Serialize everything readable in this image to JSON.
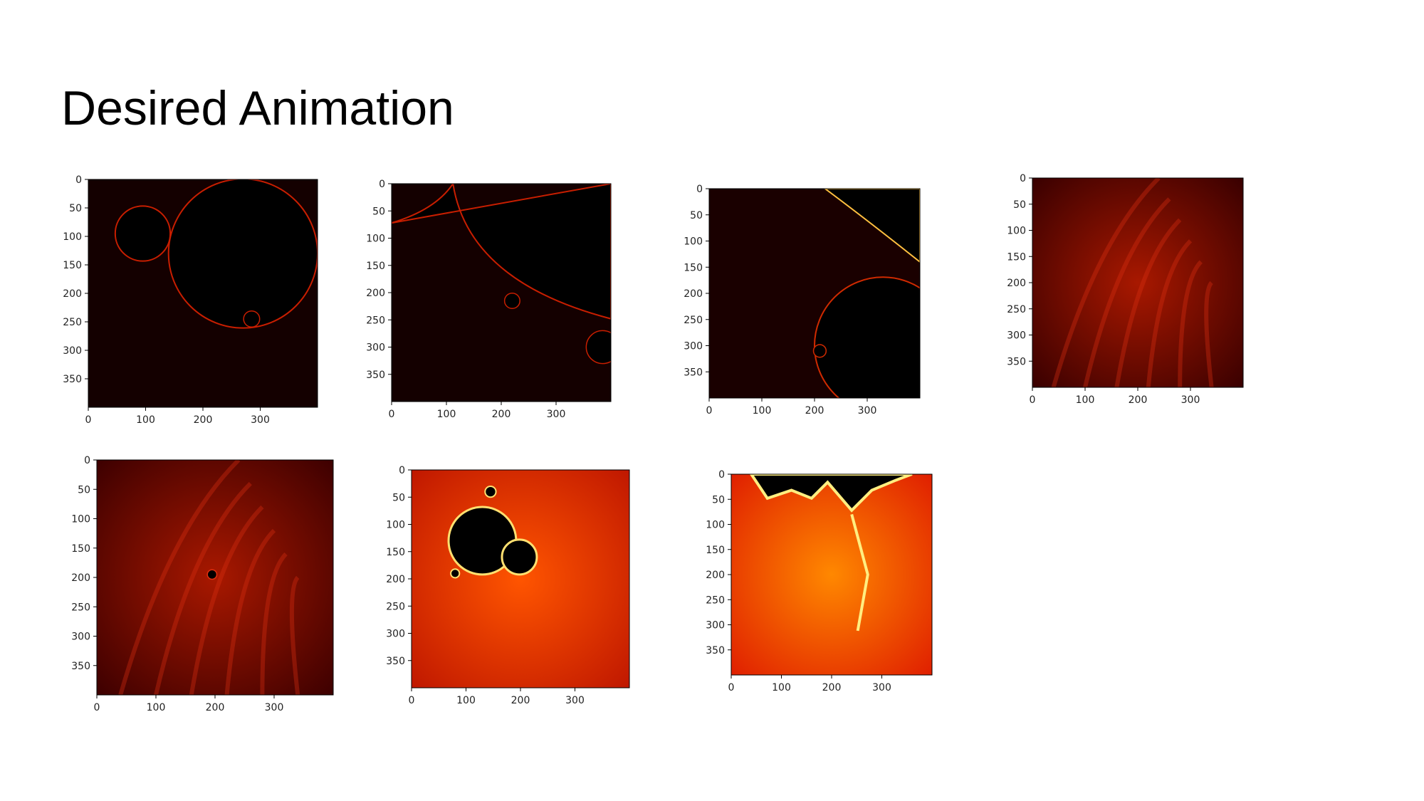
{
  "title": "Desired Animation",
  "frames": [
    {
      "id": "frame-1",
      "y_ticks": [
        "0",
        "50",
        "100",
        "150",
        "200",
        "250",
        "300",
        "350"
      ],
      "x_ticks": [
        "0",
        "100",
        "200",
        "300"
      ],
      "xlim": [
        0,
        400
      ],
      "ylim": [
        0,
        400
      ],
      "palette": "dark",
      "colors": {
        "bg": "#140000",
        "edge": "#c81e00",
        "hot": "#ffb000"
      }
    },
    {
      "id": "frame-2",
      "y_ticks": [
        "0",
        "50",
        "100",
        "150",
        "200",
        "250",
        "300",
        "350"
      ],
      "x_ticks": [
        "0",
        "100",
        "200",
        "300"
      ],
      "xlim": [
        0,
        400
      ],
      "ylim": [
        0,
        400
      ],
      "palette": "dark",
      "colors": {
        "bg": "#140000",
        "edge": "#c81e00",
        "hot": "#ffb000"
      }
    },
    {
      "id": "frame-3",
      "y_ticks": [
        "0",
        "50",
        "100",
        "150",
        "200",
        "250",
        "300",
        "350"
      ],
      "x_ticks": [
        "0",
        "100",
        "200",
        "300"
      ],
      "xlim": [
        0,
        400
      ],
      "ylim": [
        0,
        400
      ],
      "palette": "dark",
      "colors": {
        "bg": "#1a0000",
        "edge": "#d02a00",
        "hot": "#ffc040"
      }
    },
    {
      "id": "frame-4",
      "y_ticks": [
        "0",
        "50",
        "100",
        "150",
        "200",
        "250",
        "300",
        "350"
      ],
      "x_ticks": [
        "0",
        "100",
        "200",
        "300"
      ],
      "xlim": [
        0,
        400
      ],
      "ylim": [
        0,
        400
      ],
      "palette": "dendrite",
      "colors": {
        "bg": "#3a0000",
        "edge": "#a81800",
        "hot": "#e03010"
      }
    },
    {
      "id": "frame-5",
      "y_ticks": [
        "0",
        "50",
        "100",
        "150",
        "200",
        "250",
        "300",
        "350"
      ],
      "x_ticks": [
        "0",
        "100",
        "200",
        "300"
      ],
      "xlim": [
        0,
        400
      ],
      "ylim": [
        0,
        400
      ],
      "palette": "dendrite",
      "colors": {
        "bg": "#3e0000",
        "edge": "#a81800",
        "hot": "#e03010"
      }
    },
    {
      "id": "frame-6",
      "y_ticks": [
        "0",
        "50",
        "100",
        "150",
        "200",
        "250",
        "300",
        "350"
      ],
      "x_ticks": [
        "0",
        "100",
        "200",
        "300"
      ],
      "xlim": [
        0,
        400
      ],
      "ylim": [
        0,
        400
      ],
      "palette": "bright",
      "colors": {
        "bg": "#c01800",
        "edge": "#ff5500",
        "hot": "#ffe070"
      }
    },
    {
      "id": "frame-7",
      "y_ticks": [
        "0",
        "50",
        "100",
        "150",
        "200",
        "250",
        "300",
        "350"
      ],
      "x_ticks": [
        "0",
        "100",
        "200",
        "300"
      ],
      "xlim": [
        0,
        400
      ],
      "ylim": [
        0,
        400
      ],
      "palette": "bright",
      "colors": {
        "bg": "#e02000",
        "edge": "#ff8800",
        "hot": "#ffee80"
      }
    }
  ]
}
